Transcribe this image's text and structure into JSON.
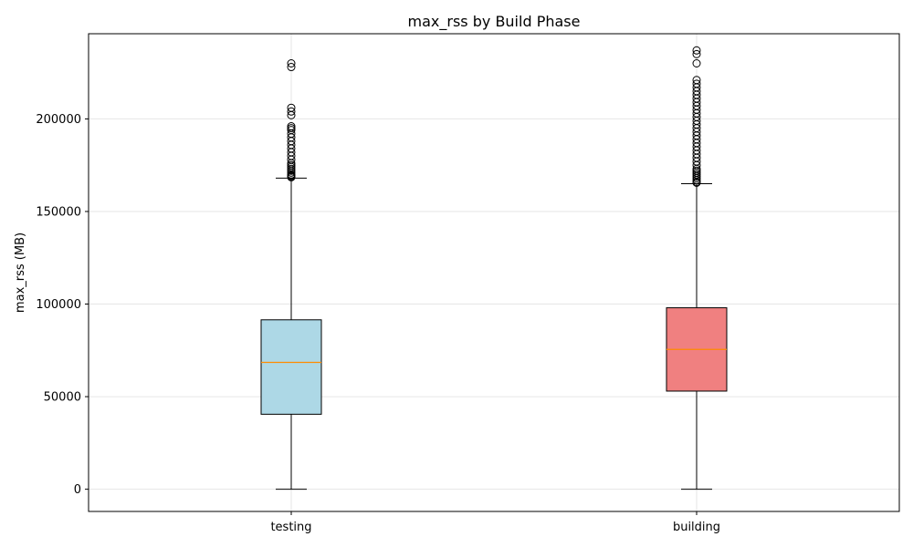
{
  "chart_data": {
    "type": "box",
    "title": "max_rss by Build Phase",
    "xlabel": "",
    "ylabel": "max_rss (MB)",
    "ylim": [
      -12000,
      246000
    ],
    "yticks": [
      0,
      50000,
      100000,
      150000,
      200000
    ],
    "grid": true,
    "categories": [
      "testing",
      "building"
    ],
    "boxes": [
      {
        "name": "testing",
        "color": "#add8e6",
        "whisker_low": 0,
        "q1": 40500,
        "median": 68500,
        "q3": 91500,
        "whisker_high": 168000,
        "outliers": [
          168500,
          169000,
          169500,
          170000,
          171000,
          172000,
          173000,
          174000,
          175000,
          176000,
          178000,
          180000,
          182000,
          184000,
          186000,
          188000,
          190000,
          192000,
          194000,
          195000,
          196000,
          202000,
          204000,
          206000,
          228000,
          230000
        ]
      },
      {
        "name": "building",
        "color": "#f08080",
        "whisker_low": 0,
        "q1": 53000,
        "median": 75500,
        "q3": 98000,
        "whisker_high": 165000,
        "outliers": [
          165500,
          166000,
          167000,
          168000,
          169000,
          170000,
          171000,
          172000,
          173000,
          175000,
          177000,
          179000,
          181000,
          183000,
          185000,
          187000,
          189000,
          191000,
          193000,
          195000,
          197000,
          199000,
          201000,
          203000,
          205000,
          207000,
          209000,
          211000,
          213000,
          215000,
          217000,
          219000,
          221000,
          230000,
          235000,
          237000
        ]
      }
    ],
    "median_color": "#ff8c00"
  }
}
